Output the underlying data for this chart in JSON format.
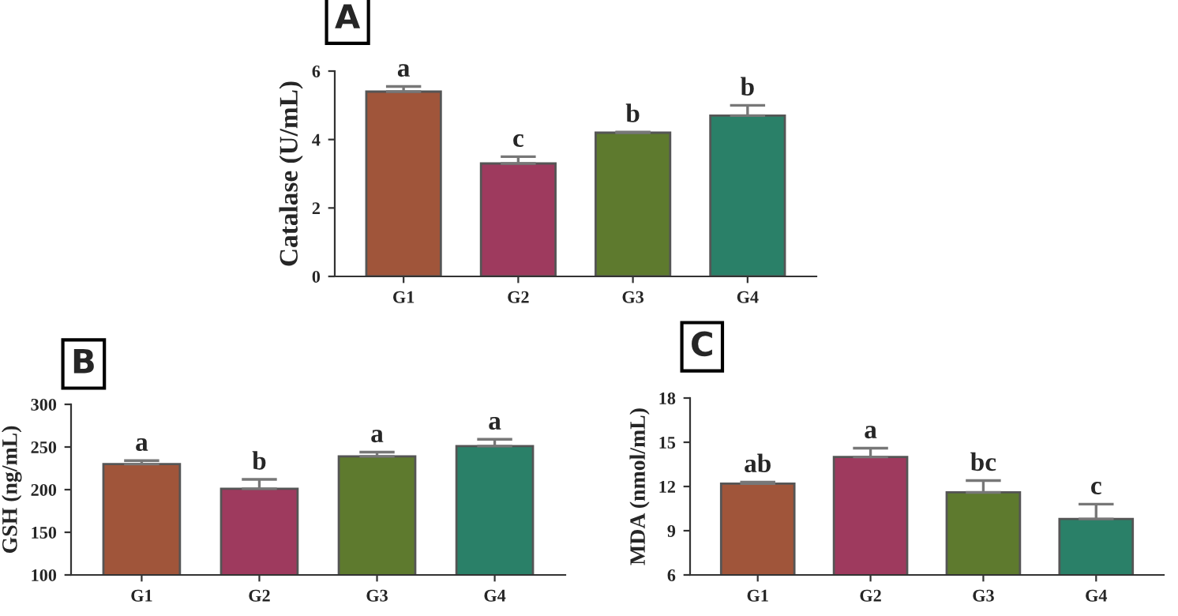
{
  "chart_data": [
    {
      "type": "bar",
      "title": "A",
      "ylabel": "Catalase (U/mL)",
      "categories": [
        "G1",
        "G2",
        "G3",
        "G4"
      ],
      "values": [
        5.4,
        3.3,
        4.2,
        4.7
      ],
      "errors": [
        [
          5.4,
          5.55
        ],
        [
          3.3,
          3.5
        ],
        [
          4.2,
          4.22
        ],
        [
          4.7,
          5.0
        ]
      ],
      "colors": [
        "#a0553a",
        "#9e3a5e",
        "#5e7a2e",
        "#2a8068"
      ],
      "ylim": [
        0,
        6
      ],
      "yticks": [
        0,
        2,
        4,
        6
      ],
      "grid": false,
      "legend": false,
      "annotations": [
        "a",
        "c",
        "b",
        "b"
      ]
    },
    {
      "type": "bar",
      "title": "B",
      "ylabel": "GSH (ng/mL)",
      "categories": [
        "G1",
        "G2",
        "G3",
        "G4"
      ],
      "values": [
        230,
        201,
        239,
        251
      ],
      "errors": [
        [
          230,
          234
        ],
        [
          201,
          212
        ],
        [
          239,
          244
        ],
        [
          251,
          259
        ]
      ],
      "colors": [
        "#a0553a",
        "#9e3a5e",
        "#5e7a2e",
        "#2a8068"
      ],
      "ylim": [
        100,
        300
      ],
      "yticks": [
        100,
        150,
        200,
        250,
        300
      ],
      "grid": false,
      "legend": false,
      "annotations": [
        "a",
        "b",
        "a",
        "a"
      ]
    },
    {
      "type": "bar",
      "title": "C",
      "ylabel": "MDA (nmol/mL)",
      "categories": [
        "G1",
        "G2",
        "G3",
        "G4"
      ],
      "values": [
        12.2,
        14.0,
        11.6,
        9.8
      ],
      "errors": [
        [
          12.2,
          12.3
        ],
        [
          14.0,
          14.6
        ],
        [
          11.6,
          12.4
        ],
        [
          9.8,
          10.8
        ]
      ],
      "colors": [
        "#a0553a",
        "#9e3a5e",
        "#5e7a2e",
        "#2a8068"
      ],
      "ylim": [
        6,
        18
      ],
      "yticks": [
        6,
        9,
        12,
        15,
        18
      ],
      "grid": false,
      "legend": false,
      "annotations": [
        "ab",
        "a",
        "bc",
        "c"
      ]
    }
  ]
}
